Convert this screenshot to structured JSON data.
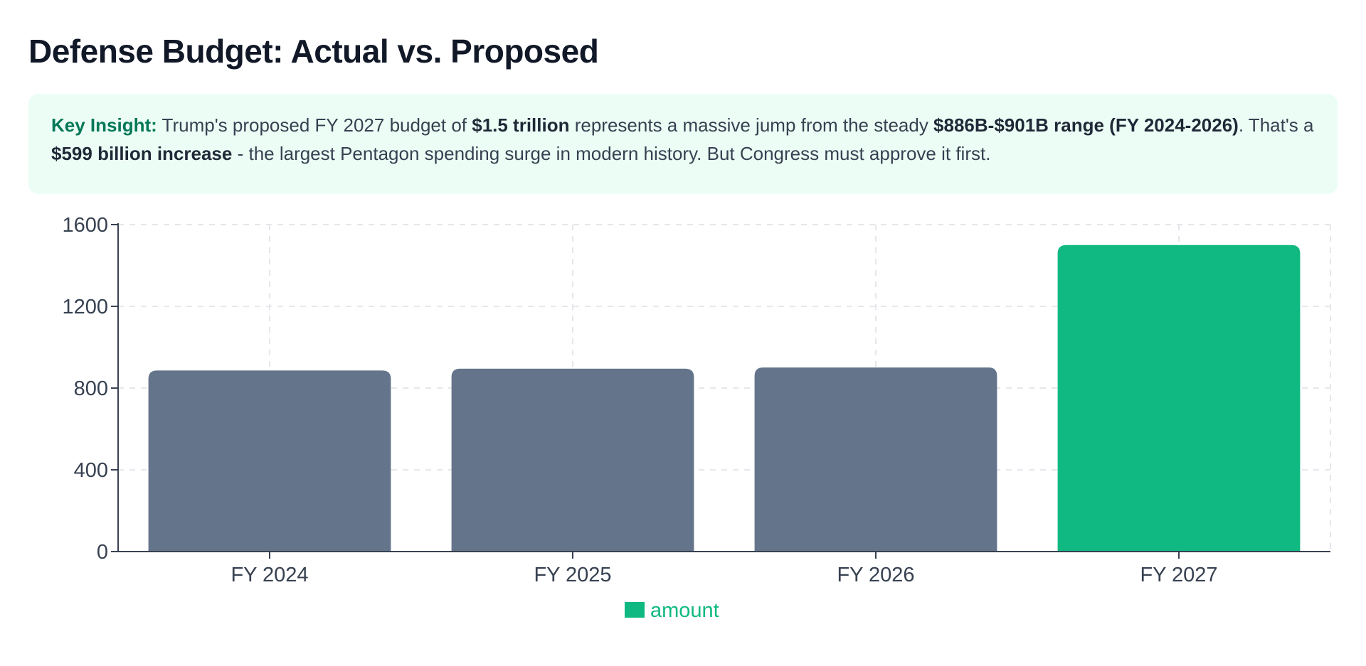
{
  "page": {
    "title": "Defense Budget: Actual vs. Proposed"
  },
  "insight": {
    "label": "Key Insight:",
    "t1": " Trump's proposed FY 2027 budget of ",
    "b1": "$1.5 trillion",
    "t2": " represents a massive jump from the steady ",
    "b2": "$886B-$901B range (FY 2024-2026)",
    "t3": ". That's a ",
    "b3": "$599 billion increase",
    "t4": " - the largest Pentagon spending surge in modern history. But Congress must approve it first."
  },
  "colors": {
    "actual": "#64748b",
    "proposed": "#10b981",
    "grid": "#e5e7eb",
    "axis": "#374151"
  },
  "chart_data": {
    "type": "bar",
    "categories": [
      "FY 2024",
      "FY 2025",
      "FY 2026",
      "FY 2027"
    ],
    "series": [
      {
        "name": "amount",
        "values": [
          886,
          895,
          901,
          1500
        ],
        "colors": [
          "#64748b",
          "#64748b",
          "#64748b",
          "#10b981"
        ]
      }
    ],
    "title": "",
    "xlabel": "",
    "ylabel": "",
    "ylim": [
      0,
      1600
    ],
    "yticks": [
      0,
      400,
      800,
      1200,
      1600
    ],
    "grid": true,
    "legend": "bottom-center"
  }
}
